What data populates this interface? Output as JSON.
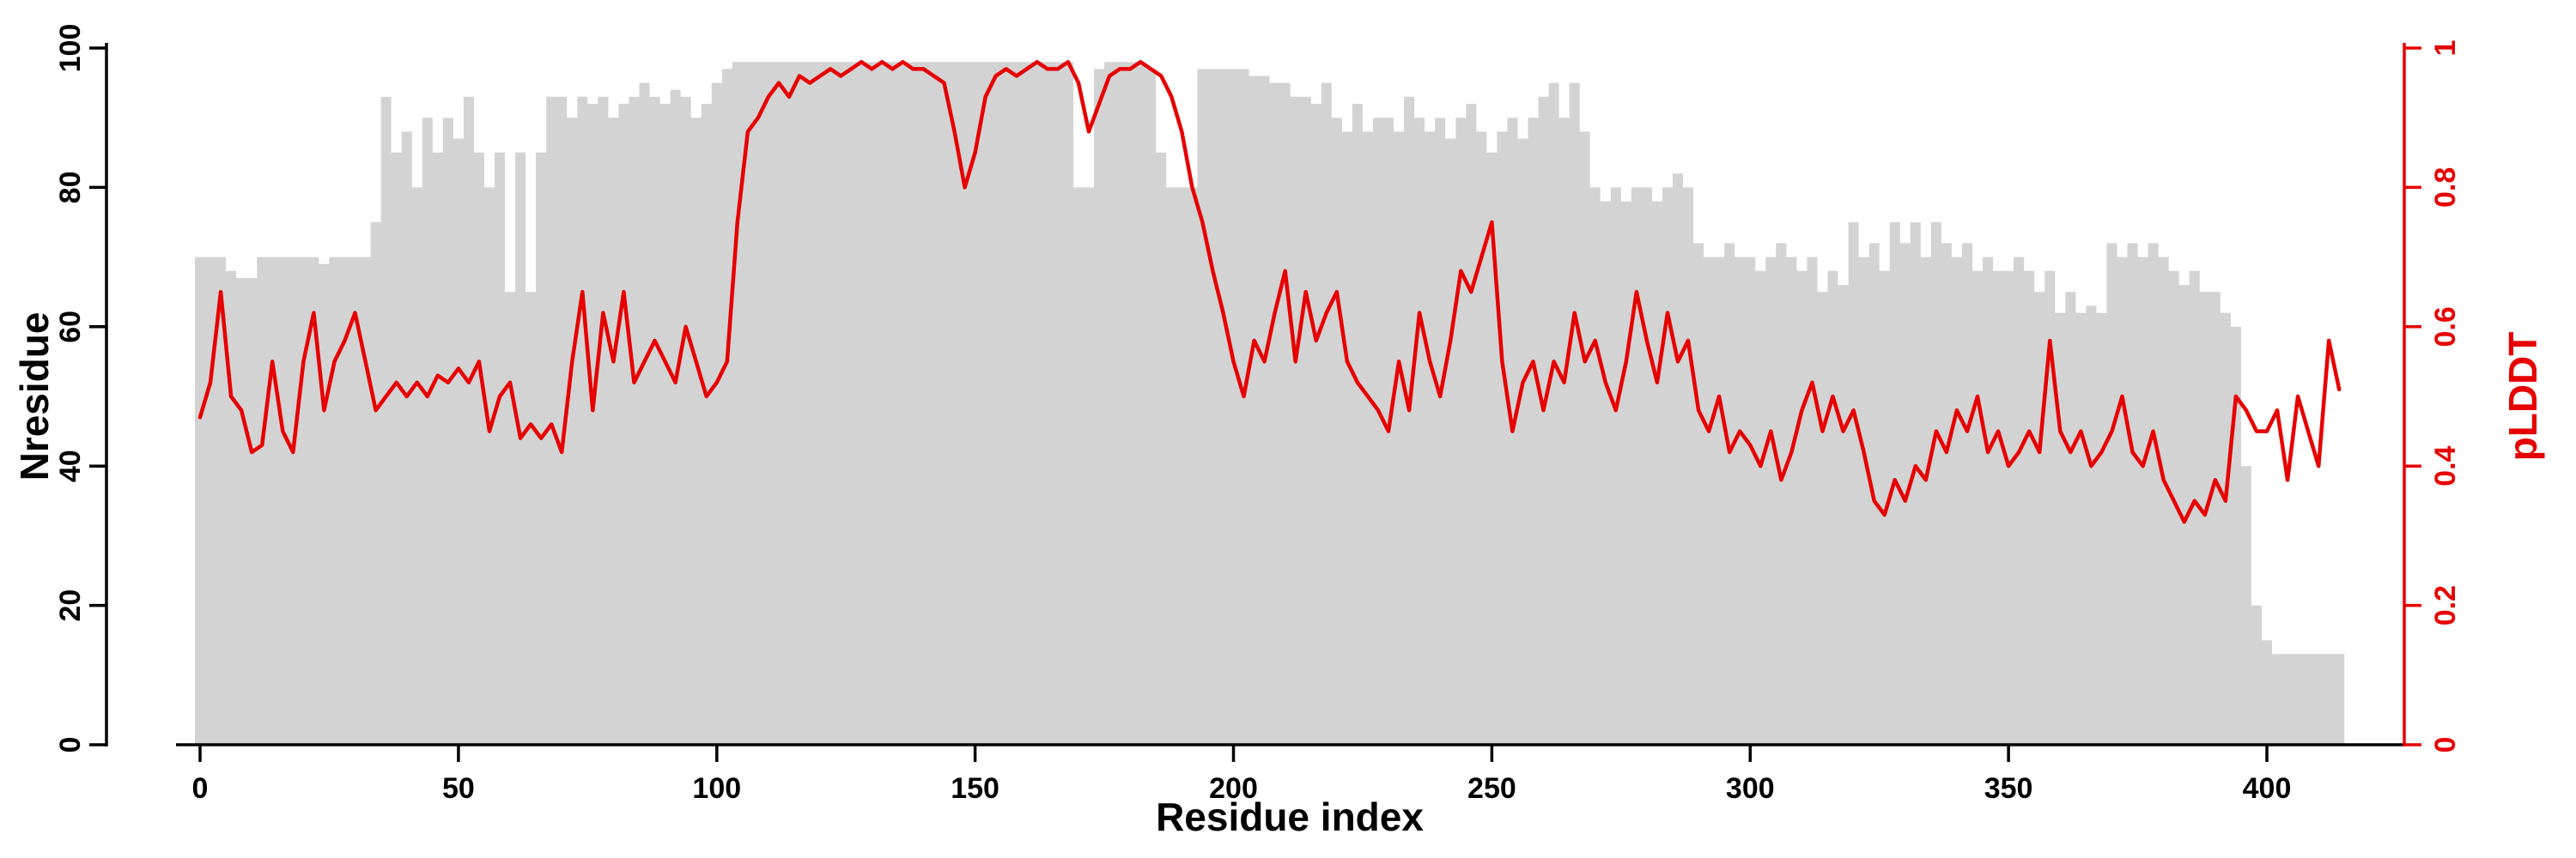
{
  "figure": {
    "background": "#ffffff",
    "bar_fill": "#d3d3d3",
    "line_color": "#e60000",
    "axis_color": "#000000"
  },
  "chart_data": {
    "type": "bar+line",
    "title": "",
    "xlabel": "Residue index",
    "ylabel_left": "Nresidue",
    "ylabel_right": "pLDDT",
    "grid": false,
    "legend": "none",
    "x_start": 0,
    "x_step": 2,
    "x_ticks": [
      0,
      50,
      100,
      150,
      200,
      250,
      300,
      350,
      400
    ],
    "left_axis": {
      "min": 0,
      "max": 100,
      "ticks": [
        0,
        20,
        40,
        60,
        80,
        100
      ]
    },
    "right_axis": {
      "min": 0,
      "max": 1,
      "ticks": [
        0,
        0.2,
        0.4,
        0.6,
        0.8,
        1
      ],
      "tick_labels": [
        "0",
        "0.2",
        "0.4",
        "0.6",
        "0.8",
        "1"
      ]
    },
    "x": [
      0,
      2,
      4,
      6,
      8,
      10,
      12,
      14,
      16,
      18,
      20,
      22,
      24,
      26,
      28,
      30,
      32,
      34,
      36,
      38,
      40,
      42,
      44,
      46,
      48,
      50,
      52,
      54,
      56,
      58,
      60,
      62,
      64,
      66,
      68,
      70,
      72,
      74,
      76,
      78,
      80,
      82,
      84,
      86,
      88,
      90,
      92,
      94,
      96,
      98,
      100,
      102,
      104,
      106,
      108,
      110,
      112,
      114,
      116,
      118,
      120,
      122,
      124,
      126,
      128,
      130,
      132,
      134,
      136,
      138,
      140,
      142,
      144,
      146,
      148,
      150,
      152,
      154,
      156,
      158,
      160,
      162,
      164,
      166,
      168,
      170,
      172,
      174,
      176,
      178,
      180,
      182,
      184,
      186,
      188,
      190,
      192,
      194,
      196,
      198,
      200,
      202,
      204,
      206,
      208,
      210,
      212,
      214,
      216,
      218,
      220,
      222,
      224,
      226,
      228,
      230,
      232,
      234,
      236,
      238,
      240,
      242,
      244,
      246,
      248,
      250,
      252,
      254,
      256,
      258,
      260,
      262,
      264,
      266,
      268,
      270,
      272,
      274,
      276,
      278,
      280,
      282,
      284,
      286,
      288,
      290,
      292,
      294,
      296,
      298,
      300,
      302,
      304,
      306,
      308,
      310,
      312,
      314,
      316,
      318,
      320,
      322,
      324,
      326,
      328,
      330,
      332,
      334,
      336,
      338,
      340,
      342,
      344,
      346,
      348,
      350,
      352,
      354,
      356,
      358,
      360,
      362,
      364,
      366,
      368,
      370,
      372,
      374,
      376,
      378,
      380,
      382,
      384,
      386,
      388,
      390,
      392,
      394,
      396,
      398,
      400,
      402,
      404,
      406,
      408,
      410,
      412,
      414
    ],
    "series": [
      {
        "name": "Nresidue",
        "type": "bar",
        "axis": "left",
        "color": "#d3d3d3",
        "values": [
          70,
          70,
          70,
          68,
          67,
          67,
          70,
          70,
          70,
          70,
          70,
          70,
          69,
          70,
          70,
          70,
          70,
          75,
          93,
          85,
          88,
          80,
          90,
          85,
          90,
          87,
          93,
          85,
          80,
          85,
          65,
          85,
          65,
          85,
          93,
          93,
          90,
          93,
          92,
          93,
          90,
          92,
          93,
          95,
          93,
          92,
          94,
          93,
          90,
          92,
          95,
          97,
          98,
          98,
          98,
          98,
          98,
          98,
          98,
          98,
          98,
          98,
          98,
          98,
          98,
          98,
          98,
          98,
          98,
          98,
          98,
          98,
          98,
          98,
          98,
          98,
          98,
          98,
          98,
          98,
          98,
          98,
          98,
          98,
          98,
          80,
          80,
          97,
          98,
          98,
          98,
          98,
          97,
          85,
          80,
          80,
          80,
          97,
          97,
          97,
          97,
          97,
          96,
          96,
          95,
          95,
          93,
          93,
          92,
          95,
          90,
          88,
          92,
          88,
          90,
          90,
          88,
          93,
          90,
          88,
          90,
          87,
          90,
          92,
          88,
          85,
          88,
          90,
          87,
          90,
          93,
          95,
          90,
          95,
          88,
          80,
          78,
          80,
          78,
          80,
          80,
          78,
          80,
          82,
          80,
          72,
          70,
          70,
          72,
          70,
          70,
          68,
          70,
          72,
          70,
          68,
          70,
          65,
          68,
          66,
          75,
          70,
          72,
          68,
          75,
          72,
          75,
          70,
          75,
          72,
          70,
          72,
          68,
          70,
          68,
          68,
          70,
          68,
          65,
          68,
          62,
          65,
          62,
          63,
          62,
          72,
          70,
          72,
          70,
          72,
          70,
          68,
          66,
          68,
          65,
          65,
          62,
          60,
          40,
          20,
          15,
          13,
          13,
          13,
          13,
          13,
          13,
          13
        ]
      },
      {
        "name": "pLDDT",
        "type": "line",
        "axis": "right",
        "color": "#e60000",
        "values": [
          0.47,
          0.52,
          0.65,
          0.5,
          0.48,
          0.42,
          0.43,
          0.55,
          0.45,
          0.42,
          0.55,
          0.62,
          0.48,
          0.55,
          0.58,
          0.62,
          0.55,
          0.48,
          0.5,
          0.52,
          0.5,
          0.52,
          0.5,
          0.53,
          0.52,
          0.54,
          0.52,
          0.55,
          0.45,
          0.5,
          0.52,
          0.44,
          0.46,
          0.44,
          0.46,
          0.42,
          0.55,
          0.65,
          0.48,
          0.62,
          0.55,
          0.65,
          0.52,
          0.55,
          0.58,
          0.55,
          0.52,
          0.6,
          0.55,
          0.5,
          0.52,
          0.55,
          0.75,
          0.88,
          0.9,
          0.93,
          0.95,
          0.93,
          0.96,
          0.95,
          0.96,
          0.97,
          0.96,
          0.97,
          0.98,
          0.97,
          0.98,
          0.97,
          0.98,
          0.97,
          0.97,
          0.96,
          0.95,
          0.88,
          0.8,
          0.85,
          0.93,
          0.96,
          0.97,
          0.96,
          0.97,
          0.98,
          0.97,
          0.97,
          0.98,
          0.95,
          0.88,
          0.92,
          0.96,
          0.97,
          0.97,
          0.98,
          0.97,
          0.96,
          0.93,
          0.88,
          0.8,
          0.75,
          0.68,
          0.62,
          0.55,
          0.5,
          0.58,
          0.55,
          0.62,
          0.68,
          0.55,
          0.65,
          0.58,
          0.62,
          0.65,
          0.55,
          0.52,
          0.5,
          0.48,
          0.45,
          0.55,
          0.48,
          0.62,
          0.55,
          0.5,
          0.58,
          0.68,
          0.65,
          0.7,
          0.75,
          0.55,
          0.45,
          0.52,
          0.55,
          0.48,
          0.55,
          0.52,
          0.62,
          0.55,
          0.58,
          0.52,
          0.48,
          0.55,
          0.65,
          0.58,
          0.52,
          0.62,
          0.55,
          0.58,
          0.48,
          0.45,
          0.5,
          0.42,
          0.45,
          0.43,
          0.4,
          0.45,
          0.38,
          0.42,
          0.48,
          0.52,
          0.45,
          0.5,
          0.45,
          0.48,
          0.42,
          0.35,
          0.33,
          0.38,
          0.35,
          0.4,
          0.38,
          0.45,
          0.42,
          0.48,
          0.45,
          0.5,
          0.42,
          0.45,
          0.4,
          0.42,
          0.45,
          0.42,
          0.58,
          0.45,
          0.42,
          0.45,
          0.4,
          0.42,
          0.45,
          0.5,
          0.42,
          0.4,
          0.45,
          0.38,
          0.35,
          0.32,
          0.35,
          0.33,
          0.38,
          0.35,
          0.5,
          0.48,
          0.45,
          0.45,
          0.48,
          0.38,
          0.5,
          0.45,
          0.4,
          0.58,
          0.51
        ]
      }
    ]
  }
}
